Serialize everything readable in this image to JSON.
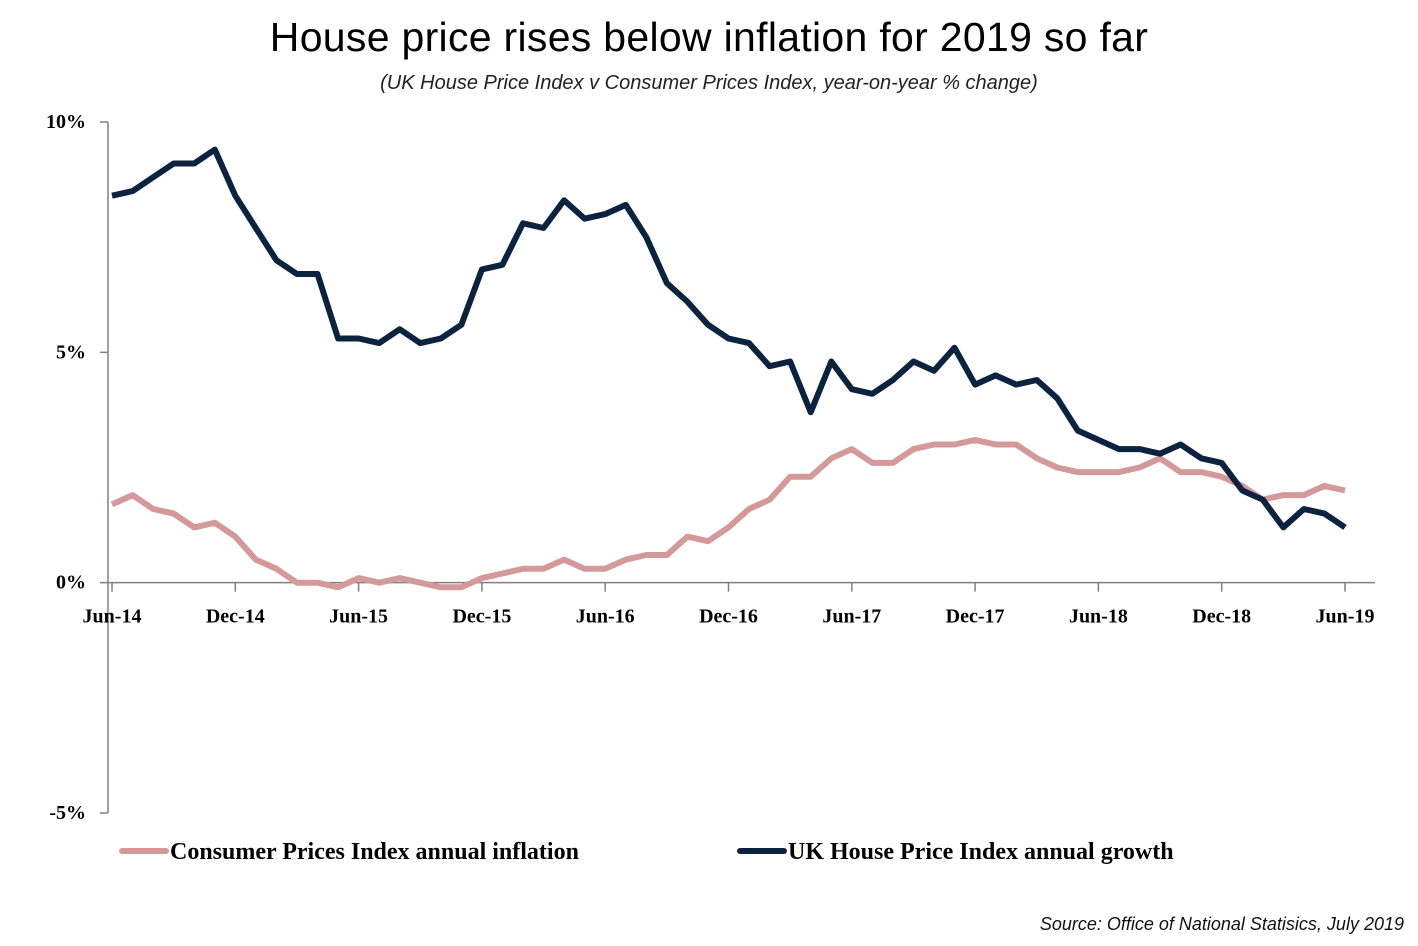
{
  "title": "House price rises below inflation for 2019 so far",
  "subtitle": "(UK House Price Index v Consumer Prices Index, year-on-year % change)",
  "source": "Source: Office of National Statisics, July 2019",
  "colors": {
    "cpi": "#d4999a",
    "hpi": "#0c2340",
    "axis": "#808080"
  },
  "chart_data": {
    "type": "line",
    "title": "House price rises below inflation for 2019 so far",
    "subtitle": "(UK House Price Index v Consumer Prices Index, year-on-year % change)",
    "x_start": "Jun-14",
    "x_end": "Jun-19",
    "x_tick_labels": [
      "Jun-14",
      "Dec-14",
      "Jun-15",
      "Dec-15",
      "Jun-16",
      "Dec-16",
      "Jun-17",
      "Dec-17",
      "Jun-18",
      "Dec-18",
      "Jun-19"
    ],
    "y_tick_labels": [
      "10%",
      "5%",
      "0%",
      "-5%"
    ],
    "y_ticks": [
      10,
      5,
      0,
      -5
    ],
    "ylim": [
      -5,
      10
    ],
    "legend_position": "bottom",
    "grid": false,
    "series": [
      {
        "name": "Consumer Prices Index annual inflation",
        "key": "cpi",
        "values": [
          1.7,
          1.9,
          1.6,
          1.5,
          1.2,
          1.3,
          1.0,
          0.5,
          0.3,
          0.0,
          0.0,
          -0.1,
          0.1,
          0.0,
          0.1,
          0.0,
          -0.1,
          -0.1,
          0.1,
          0.2,
          0.3,
          0.3,
          0.5,
          0.3,
          0.3,
          0.5,
          0.6,
          0.6,
          1.0,
          0.9,
          1.2,
          1.6,
          1.8,
          2.3,
          2.3,
          2.7,
          2.9,
          2.6,
          2.6,
          2.9,
          3.0,
          3.0,
          3.1,
          3.0,
          3.0,
          2.7,
          2.5,
          2.4,
          2.4,
          2.4,
          2.5,
          2.7,
          2.4,
          2.4,
          2.3,
          2.1,
          1.8,
          1.9,
          1.9,
          2.1,
          2.0
        ]
      },
      {
        "name": "UK House Price Index annual growth",
        "key": "hpi",
        "values": [
          8.4,
          8.5,
          8.8,
          9.1,
          9.1,
          9.4,
          8.4,
          7.7,
          7.0,
          6.7,
          6.7,
          5.3,
          5.3,
          5.2,
          5.5,
          5.2,
          5.3,
          5.6,
          6.8,
          6.9,
          7.8,
          7.7,
          8.3,
          7.9,
          8.0,
          8.2,
          7.5,
          6.5,
          6.1,
          5.6,
          5.3,
          5.2,
          4.7,
          4.8,
          3.7,
          4.8,
          4.2,
          4.1,
          4.4,
          4.8,
          4.6,
          5.1,
          4.3,
          4.5,
          4.3,
          4.4,
          4.0,
          3.3,
          3.1,
          2.9,
          2.9,
          2.8,
          3.0,
          2.7,
          2.6,
          2.0,
          1.8,
          1.2,
          1.6,
          1.5,
          1.2
        ]
      }
    ]
  }
}
